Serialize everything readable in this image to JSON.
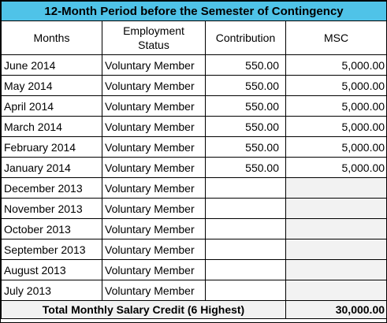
{
  "title": "12-Month Period before the Semester of Contingency",
  "headers": {
    "months": "Months",
    "status_line1": "Employment",
    "status_line2": "Status",
    "contribution": "Contribution",
    "msc": "MSC"
  },
  "rows": [
    {
      "month": "June 2014",
      "status": "Voluntary Member",
      "contribution": "550.00",
      "msc": "5,000.00"
    },
    {
      "month": "May 2014",
      "status": "Voluntary Member",
      "contribution": "550.00",
      "msc": "5,000.00"
    },
    {
      "month": "April 2014",
      "status": "Voluntary Member",
      "contribution": "550.00",
      "msc": "5,000.00"
    },
    {
      "month": "March 2014",
      "status": "Voluntary Member",
      "contribution": "550.00",
      "msc": "5,000.00"
    },
    {
      "month": "February 2014",
      "status": "Voluntary Member",
      "contribution": "550.00",
      "msc": "5,000.00"
    },
    {
      "month": "January 2014",
      "status": "Voluntary Member",
      "contribution": "550.00",
      "msc": "5,000.00"
    },
    {
      "month": "December 2013",
      "status": "Voluntary Member",
      "contribution": "",
      "msc": ""
    },
    {
      "month": "November 2013",
      "status": "Voluntary Member",
      "contribution": "",
      "msc": ""
    },
    {
      "month": "October 2013",
      "status": "Voluntary Member",
      "contribution": "",
      "msc": ""
    },
    {
      "month": "September 2013",
      "status": "Voluntary Member",
      "contribution": "",
      "msc": ""
    },
    {
      "month": "August 2013",
      "status": "Voluntary Member",
      "contribution": "",
      "msc": ""
    },
    {
      "month": "July 2013",
      "status": "Voluntary Member",
      "contribution": "",
      "msc": ""
    }
  ],
  "total": {
    "label": "Total Monthly Salary Credit (6 Highest)",
    "value": "30,000.00"
  },
  "colors": {
    "title_bg": "#4fc3e8",
    "shaded_cell": "#f2f2f2",
    "border": "#000000"
  }
}
